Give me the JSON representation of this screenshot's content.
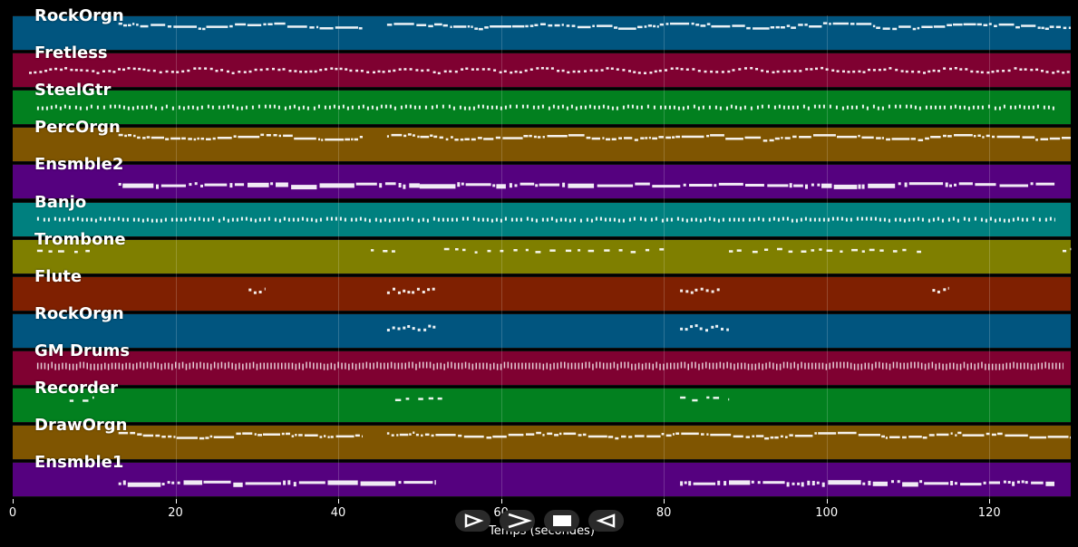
{
  "axis": {
    "xlabel": "Temps (secondes)",
    "ticks": [
      "0",
      "20",
      "40",
      "60",
      "80",
      "100",
      "120"
    ],
    "tick_values": [
      0,
      20,
      40,
      60,
      80,
      100,
      120
    ],
    "range": [
      0,
      130
    ]
  },
  "tracks": [
    {
      "label": "RockOrgn",
      "color": "#01557f",
      "pattern": "melody",
      "segments": [
        [
          13,
          43
        ],
        [
          46,
          130
        ]
      ]
    },
    {
      "label": "Fretless",
      "color": "#7f0131",
      "pattern": "wavy",
      "segments": [
        [
          2,
          130
        ]
      ]
    },
    {
      "label": "SteelGtr",
      "color": "#02801f",
      "pattern": "dense",
      "segments": [
        [
          3,
          128
        ]
      ]
    },
    {
      "label": "PercOrgn",
      "color": "#7f5501",
      "pattern": "melody",
      "segments": [
        [
          13,
          43
        ],
        [
          46,
          130
        ]
      ]
    },
    {
      "label": "Ensmble2",
      "color": "#55017f",
      "pattern": "chord",
      "segments": [
        [
          13,
          50
        ],
        [
          50,
          128
        ]
      ]
    },
    {
      "label": "Banjo",
      "color": "#00807f",
      "pattern": "dense",
      "segments": [
        [
          3,
          128
        ]
      ]
    },
    {
      "label": "Trombone",
      "color": "#7f7f00",
      "pattern": "sparse",
      "segments": [
        [
          3,
          10
        ],
        [
          44,
          47
        ],
        [
          53,
          80
        ],
        [
          88,
          112
        ],
        [
          129,
          130
        ]
      ]
    },
    {
      "label": "Flute",
      "color": "#7f2001",
      "pattern": "short",
      "segments": [
        [
          29,
          31
        ],
        [
          46,
          52
        ],
        [
          82,
          87
        ],
        [
          113,
          115
        ]
      ]
    },
    {
      "label": "RockOrgn",
      "color": "#01557f",
      "pattern": "short",
      "segments": [
        [
          46,
          52
        ],
        [
          82,
          88
        ]
      ]
    },
    {
      "label": "GM Drums",
      "color": "#7f0131",
      "pattern": "drums",
      "segments": [
        [
          3,
          129
        ]
      ]
    },
    {
      "label": "Recorder",
      "color": "#02801f",
      "pattern": "sparse",
      "segments": [
        [
          7,
          10
        ],
        [
          47,
          53
        ],
        [
          82,
          88
        ]
      ]
    },
    {
      "label": "DrawOrgn",
      "color": "#7f5501",
      "pattern": "melody",
      "segments": [
        [
          13,
          43
        ],
        [
          46,
          130
        ]
      ]
    },
    {
      "label": "Ensmble1",
      "color": "#55017f",
      "pattern": "chord",
      "segments": [
        [
          13,
          52
        ],
        [
          82,
          128
        ]
      ]
    }
  ],
  "transport": [
    {
      "name": "play-button",
      "icon": "play-icon"
    },
    {
      "name": "fast-forward-button",
      "icon": "fast-forward-icon"
    },
    {
      "name": "stop-button",
      "icon": "stop-icon"
    },
    {
      "name": "rewind-button",
      "icon": "rewind-icon"
    }
  ]
}
